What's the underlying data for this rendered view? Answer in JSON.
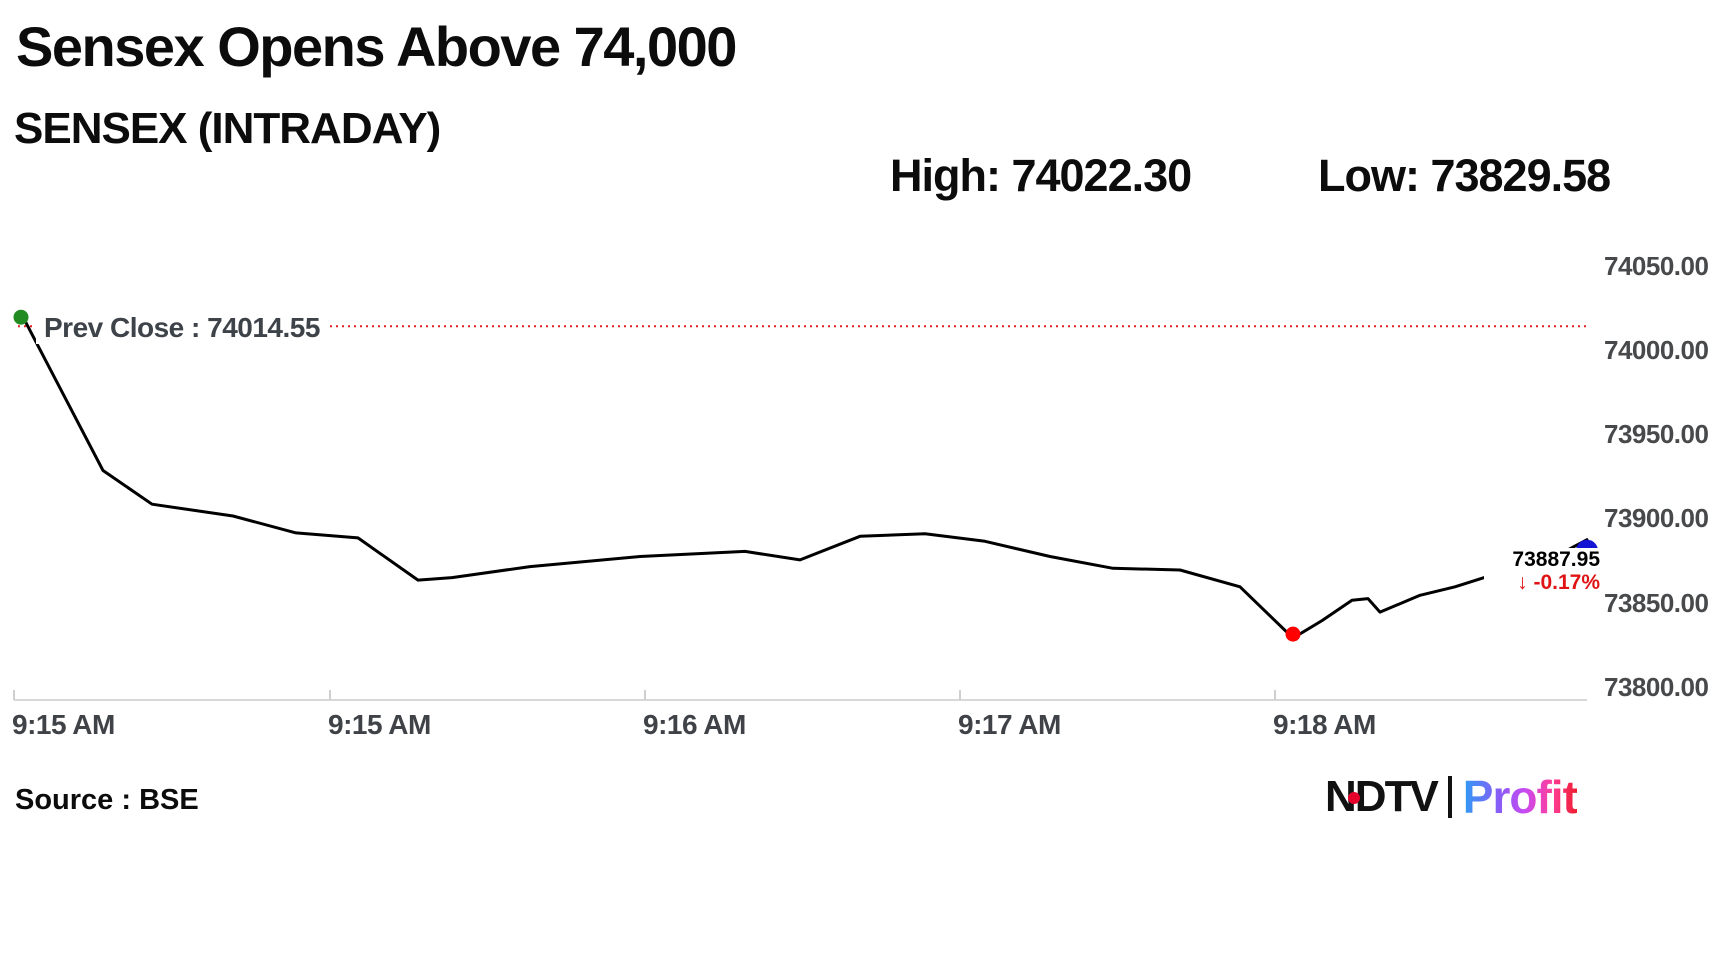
{
  "header": {
    "title": "Sensex Opens Above 74,000",
    "subtitle": "SENSEX (INTRADAY)",
    "high_label": "High: 74022.30",
    "low_label": "Low: 73829.58"
  },
  "annotations": {
    "prev_close_label": "Prev Close : 74014.55",
    "last_value_label": "73887.95",
    "change_label": "↓ -0.17%"
  },
  "footer": {
    "source": "Source : BSE",
    "logo_ndtv_n": "N",
    "logo_ndtv_d": "D",
    "logo_ndtv_tv": "TV",
    "logo_profit": "Profit"
  },
  "colors": {
    "line": "#000000",
    "prev_close_dotted": "#e02020",
    "high_marker_green": "#228b22",
    "low_marker_red": "#fe0000",
    "last_marker_blue": "#1414d4",
    "change_red": "#e01414",
    "axis_gray": "#d8d8d8",
    "label_gray": "#45484b"
  },
  "chart_data": {
    "type": "line",
    "title": "SENSEX (INTRADAY)",
    "xlabel": "",
    "ylabel": "",
    "high": 74022.3,
    "low": 73829.58,
    "prev_close": 74014.55,
    "last_price": 73887.95,
    "change_pct": -0.17,
    "ylim": [
      73800,
      74050
    ],
    "grid": "off",
    "legend": "none",
    "y_ticks": [
      "74050.00",
      "74000.00",
      "73950.00",
      "73900.00",
      "73850.00",
      "73800.00"
    ],
    "x_ticks": [
      "9:15 AM",
      "9:15 AM",
      "9:16 AM",
      "9:17 AM",
      "9:18 AM"
    ],
    "series": [
      {
        "name": "SENSEX",
        "points": [
          [
            21,
            74022.3
          ],
          [
            103,
            73929
          ],
          [
            152,
            73909
          ],
          [
            233,
            73902
          ],
          [
            296,
            73892
          ],
          [
            358,
            73889
          ],
          [
            418,
            73864
          ],
          [
            452,
            73865.5
          ],
          [
            530,
            73872
          ],
          [
            640,
            73878
          ],
          [
            745,
            73881
          ],
          [
            800,
            73876
          ],
          [
            860,
            73890
          ],
          [
            925,
            73891.5
          ],
          [
            985,
            73887
          ],
          [
            1050,
            73878
          ],
          [
            1113,
            73871
          ],
          [
            1180,
            73870
          ],
          [
            1240,
            73860
          ],
          [
            1293,
            73829.58
          ],
          [
            1322,
            73840
          ],
          [
            1352,
            73852
          ],
          [
            1368,
            73853
          ],
          [
            1380,
            73845
          ],
          [
            1420,
            73855
          ],
          [
            1455,
            73860
          ],
          [
            1487,
            73866
          ],
          [
            1530,
            73870
          ],
          [
            1587,
            73887.95
          ]
        ]
      }
    ]
  }
}
